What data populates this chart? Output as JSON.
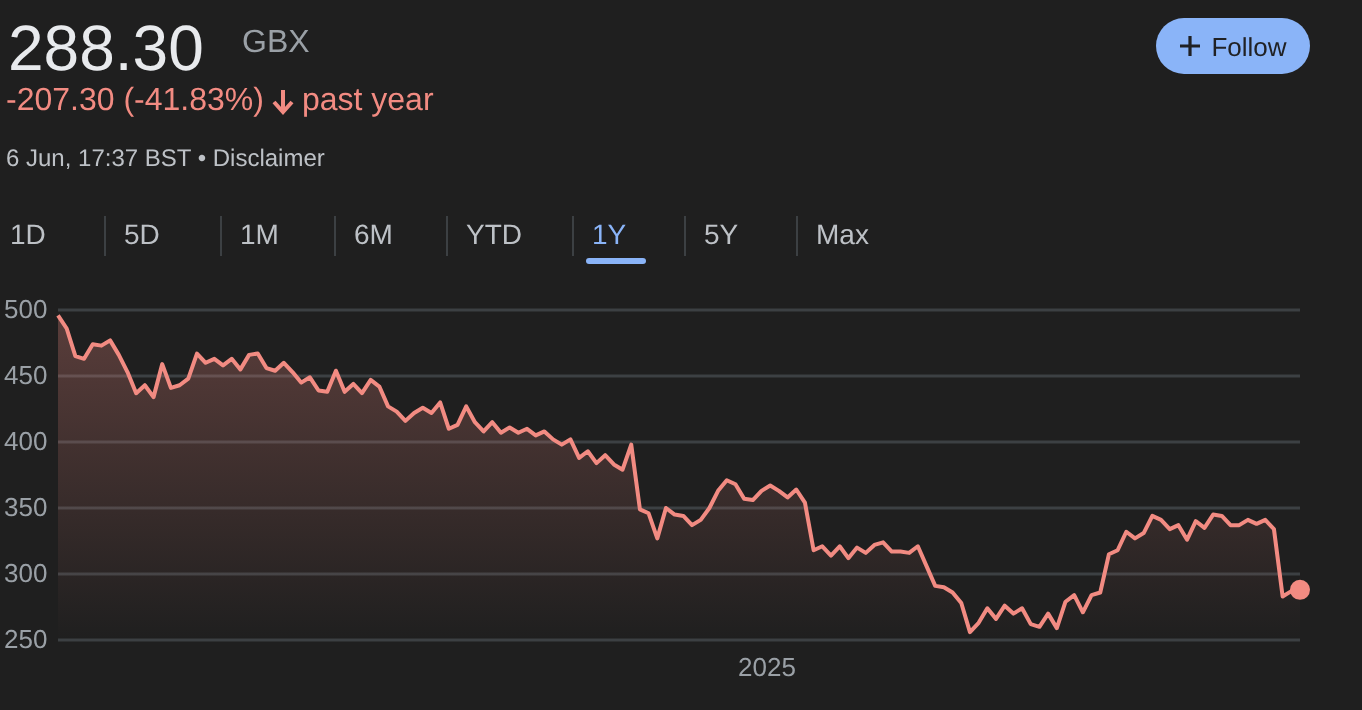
{
  "chart_data": {
    "type": "area",
    "title": "288.30",
    "annotations": [
      "GBX",
      "-207.30 (-41.83%)",
      "past year",
      "6 Jun, 17:37 BST • Disclaimer",
      "Follow",
      "1D",
      "5D",
      "1M",
      "6M",
      "YTD",
      "1Y",
      "5Y",
      "Max",
      "2025"
    ],
    "categories": [
      null,
      null,
      null,
      null,
      null,
      null,
      null,
      null,
      null,
      null,
      null,
      null,
      null,
      null,
      null,
      null,
      null,
      null,
      null,
      null,
      null,
      null,
      null,
      null,
      null,
      null,
      null,
      null,
      null,
      null,
      null,
      null,
      null,
      null,
      null,
      null,
      null,
      null,
      null,
      null,
      null,
      null,
      null,
      null,
      null,
      null,
      null,
      null,
      null,
      null,
      null,
      null,
      null,
      null,
      null,
      null,
      null,
      null,
      null,
      null,
      null,
      null,
      null,
      null,
      null,
      null,
      null,
      null,
      null,
      null,
      null,
      null,
      null,
      null,
      null,
      null,
      null,
      null,
      null,
      null,
      null,
      null,
      null,
      null,
      null,
      null,
      null,
      null,
      null,
      null,
      null,
      null,
      null,
      null,
      null,
      null,
      null,
      null,
      null,
      null,
      null,
      null,
      null,
      null,
      null,
      null,
      null,
      null,
      null,
      null,
      null,
      null,
      null,
      null,
      null,
      null,
      null,
      null,
      null,
      null,
      null,
      null,
      null,
      null,
      null,
      null,
      null,
      null,
      null,
      null,
      null,
      null,
      null,
      null,
      null,
      null,
      null,
      null,
      null,
      null,
      null,
      null,
      null,
      null
    ],
    "ylim": [
      250,
      500
    ],
    "yticks": [
      250,
      300,
      350,
      400,
      450,
      500
    ],
    "grid": "y",
    "legend": false,
    "line_style": "solid",
    "series": [
      {
        "color": "#f28b82",
        "values": [
          496,
          486,
          465,
          463,
          474,
          473,
          477,
          466,
          453,
          437,
          443,
          434,
          459,
          441,
          443,
          448,
          467,
          460,
          463,
          458,
          463,
          455,
          466,
          467,
          456,
          454,
          460,
          453,
          445,
          449,
          439,
          438,
          454,
          438,
          444,
          437,
          447,
          442,
          427,
          423,
          416,
          422,
          426,
          422,
          430,
          410,
          413,
          427,
          415,
          408,
          415,
          407,
          411,
          407,
          410,
          405,
          408,
          402,
          398,
          402,
          388,
          393,
          384,
          390,
          383,
          379,
          398,
          349,
          346,
          327,
          350,
          345,
          344,
          337,
          341,
          350,
          363,
          371,
          368,
          357,
          356,
          363,
          367,
          363,
          358,
          364,
          354,
          318,
          321,
          314,
          321,
          312,
          320,
          316,
          322,
          324,
          317,
          317,
          316,
          321,
          306,
          291,
          290,
          286,
          278,
          256,
          263,
          274,
          266,
          276,
          270,
          274,
          262,
          260,
          270,
          259,
          279,
          284,
          271,
          284,
          286,
          315,
          318,
          332,
          327,
          331,
          344,
          341,
          334,
          337,
          326,
          340,
          335,
          345,
          344,
          337,
          337,
          341,
          338,
          341,
          334,
          283,
          287,
          288
        ]
      }
    ]
  }
}
